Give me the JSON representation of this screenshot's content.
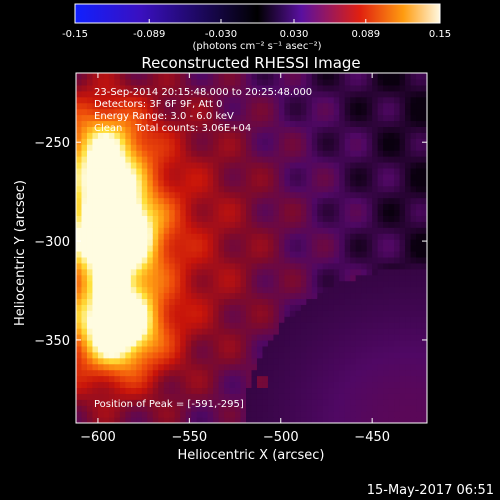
{
  "colorbar": {
    "tick_labels": [
      "-0.15",
      "-0.089",
      "-0.030",
      "0.030",
      "0.089",
      "0.15"
    ],
    "range": [
      -0.15,
      0.15
    ],
    "units_label": "(photons cm⁻² s⁻¹ asec⁻²)",
    "colors": [
      "#1020ff",
      "#3a10c0",
      "#000000",
      "#5a10a0",
      "#e02010",
      "#ff9c10",
      "#fff8e0"
    ]
  },
  "chart_data": {
    "type": "heatmap",
    "title": "Reconstructed RHESSI Image",
    "xlabel": "Heliocentric X (arcsec)",
    "ylabel": "Heliocentric Y (arcsec)",
    "xlim": [
      -612,
      -420
    ],
    "ylim": [
      -392,
      -215
    ],
    "xticks": [
      -600,
      -550,
      -500,
      -450
    ],
    "yticks": [
      -250,
      -300,
      -350
    ],
    "annotations": [
      "23-Sep-2014 20:15:48.000 to 20:25:48.000",
      "Detectors: 3F 6F 9F, Att 0",
      "Energy Range: 3.0 - 6.0 keV",
      "Clean    Total counts: 3.06E+04"
    ],
    "peak_label": "Position of Peak = [-591,-295]",
    "sources": [
      {
        "x": -591,
        "y": -295,
        "peak": 0.15
      },
      {
        "x": -589,
        "y": -343,
        "peak": 0.13
      },
      {
        "x": -596,
        "y": -255,
        "peak": 0.09
      }
    ]
  },
  "footer": {
    "date": "15-May-2017 06:51"
  }
}
